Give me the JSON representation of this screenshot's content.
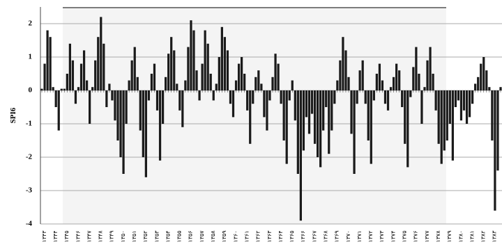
{
  "chart_data": {
    "type": "bar",
    "y_label": "SPI6",
    "color": "#1a1a1a",
    "grid": true,
    "ylim": [
      -4,
      2.5
    ],
    "yticks": [
      -4,
      -3,
      -2,
      -1,
      0,
      1,
      2
    ],
    "categories": [
      "۱۳۴۳",
      null,
      null,
      null,
      "۱۳۴۴",
      null,
      null,
      null,
      "۱۳۴۵",
      null,
      null,
      null,
      "۱۳۴۶",
      null,
      null,
      null,
      "۱۳۴۷",
      null,
      null,
      null,
      "۱۳۴۸",
      null,
      null,
      null,
      "۱۳۴۹",
      null,
      null,
      null,
      "۱۳۵۰",
      null,
      null,
      null,
      "۱۳۵۱",
      null,
      null,
      null,
      "۱۳۵۲",
      null,
      null,
      null,
      "۱۳۵۳",
      null,
      null,
      null,
      "۱۳۵۴",
      null,
      null,
      null,
      "۱۳۵۵",
      null,
      null,
      null,
      "۱۳۵۶",
      null,
      null,
      null,
      "۱۳۵۷",
      null,
      null,
      null,
      "۱۳۵۸",
      null,
      null,
      null,
      "۱۳۵۹",
      null,
      null,
      null,
      "۱۳۶۰",
      null,
      null,
      null,
      "۱۳۶۱",
      null,
      null,
      null,
      "۱۳۶۲",
      null,
      null,
      null,
      "۱۳۶۳",
      null,
      null,
      null,
      "۱۳۶۴",
      null,
      null,
      null,
      "۱۳۶۵",
      null,
      null,
      null,
      "۱۳۶۶",
      null,
      null,
      null,
      "۱۳۶۷",
      null,
      null,
      null,
      "۱۳۶۸",
      null,
      null,
      null,
      "۱۳۶۹",
      null,
      null,
      null,
      "۱۳۷۰",
      null,
      null,
      null,
      "۱۳۷۱",
      null,
      null,
      null,
      "۱۳۷۲",
      null,
      null,
      null,
      "۱۳۷۳",
      null,
      null,
      null,
      "۱۳۷۴",
      null,
      null,
      null,
      "۱۳۷۵",
      null,
      null,
      null,
      "۱۳۷۶",
      null,
      null,
      null,
      "۱۳۷۷",
      null,
      null,
      null,
      "۱۳۷۸",
      null,
      null,
      null,
      "۱۳۷۹",
      null,
      null,
      null,
      "۱۳۸۰",
      null,
      null,
      null,
      "۱۳۸۱",
      null,
      null,
      null,
      "۱۳۸۲",
      null,
      null,
      null,
      "۱۳۸۳",
      null,
      null,
      null
    ],
    "values": [
      0.05,
      0.8,
      1.8,
      1.6,
      0.1,
      -0.5,
      -1.2,
      0.05,
      0.05,
      0.5,
      1.4,
      0.9,
      -0.4,
      0.1,
      0.8,
      1.2,
      0.3,
      -1.0,
      0.1,
      0.9,
      1.6,
      2.2,
      1.4,
      -0.5,
      0.2,
      -0.3,
      -0.9,
      -1.5,
      -2.0,
      -2.5,
      -1.0,
      0.3,
      0.9,
      1.3,
      0.4,
      -1.2,
      -2.0,
      -2.6,
      -0.3,
      0.5,
      0.8,
      -0.6,
      -2.1,
      -1.0,
      0.4,
      1.1,
      1.6,
      1.2,
      0.2,
      -0.6,
      -1.1,
      0.3,
      1.3,
      2.1,
      1.8,
      0.6,
      -0.3,
      0.8,
      1.8,
      1.4,
      0.5,
      -0.3,
      0.2,
      1.0,
      1.9,
      1.6,
      1.2,
      -0.4,
      -0.8,
      0.3,
      0.8,
      1.0,
      0.5,
      -0.6,
      -1.6,
      -0.4,
      0.4,
      0.6,
      0.2,
      -0.8,
      -1.2,
      -0.3,
      0.4,
      1.1,
      0.8,
      -0.4,
      -1.5,
      -2.2,
      -0.3,
      0.3,
      -0.9,
      -2.5,
      -3.9,
      -1.8,
      -0.8,
      -1.3,
      -0.7,
      -1.6,
      -2.0,
      -2.3,
      -1.2,
      -0.5,
      -1.9,
      -1.2,
      -0.4,
      0.3,
      0.9,
      1.6,
      1.2,
      0.4,
      -1.3,
      -2.5,
      -0.4,
      0.6,
      0.9,
      -0.4,
      -1.5,
      -2.2,
      -0.3,
      0.5,
      0.8,
      0.3,
      -0.4,
      -0.6,
      0.1,
      0.4,
      0.8,
      0.6,
      -0.5,
      -1.6,
      -2.3,
      -0.2,
      0.7,
      1.3,
      0.5,
      -1.0,
      0.1,
      0.9,
      1.3,
      0.5,
      -0.6,
      -1.6,
      -2.2,
      -1.8,
      -1.5,
      -1.0,
      -2.1,
      -0.5,
      -0.3,
      -0.9,
      -0.6,
      -1.0,
      -0.8,
      -0.4,
      0.2,
      0.4,
      0.8,
      1.0,
      0.6,
      0.1,
      -1.5,
      -3.6,
      -2.4,
      0.1
    ]
  }
}
